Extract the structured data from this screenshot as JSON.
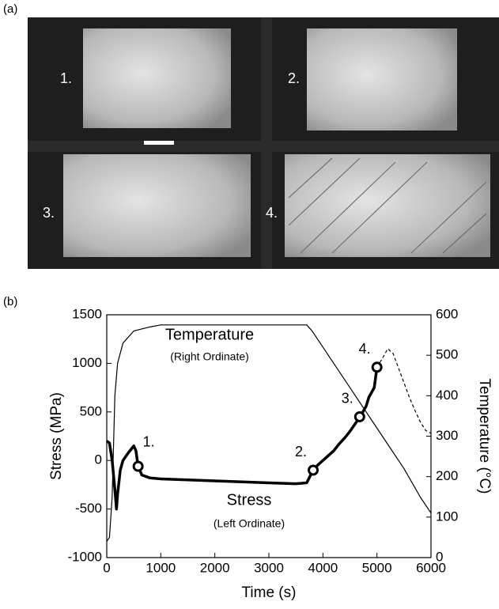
{
  "panel_a": {
    "label": "(a)",
    "frames": [
      "1.",
      "2.",
      "3.",
      "4."
    ]
  },
  "chart_data": {
    "type": "line",
    "label": "(b)",
    "xlabel": "Time (s)",
    "ylabel": "Stress (MPa)",
    "y2label": "Temperature (°C)",
    "xlim": [
      0,
      6000
    ],
    "xticks": [
      0,
      1000,
      2000,
      3000,
      4000,
      5000,
      6000
    ],
    "ylim": [
      -1000,
      1500
    ],
    "yticks": [
      -1000,
      -500,
      0,
      500,
      1000,
      1500
    ],
    "y2lim": [
      0,
      600
    ],
    "y2ticks": [
      0,
      100,
      200,
      300,
      400,
      500,
      600
    ],
    "series": [
      {
        "name": "Stress",
        "note": "(Left Ordinate)",
        "color": "#000000",
        "width": 3.5,
        "x": [
          0,
          50,
          100,
          150,
          180,
          200,
          250,
          300,
          400,
          500,
          540,
          580,
          650,
          800,
          1000,
          1500,
          2000,
          2500,
          3000,
          3500,
          3700,
          3800,
          3900,
          4000,
          4100,
          4200,
          4300,
          4400,
          4500,
          4600,
          4700,
          4800,
          4850,
          4900,
          4950,
          5000
        ],
        "values": [
          200,
          180,
          0,
          -300,
          -500,
          -350,
          -100,
          0,
          80,
          150,
          100,
          -60,
          -150,
          -180,
          -190,
          -200,
          -210,
          -220,
          -230,
          -240,
          -230,
          -120,
          -50,
          0,
          50,
          100,
          170,
          230,
          300,
          380,
          460,
          560,
          650,
          700,
          750,
          960
        ]
      },
      {
        "color": "#000000",
        "width": 1.2,
        "dashed": true,
        "x": [
          5000,
          5100,
          5200,
          5300,
          5400,
          5500,
          5600,
          5700,
          5800,
          5900,
          6000
        ],
        "values": [
          960,
          1050,
          1150,
          1100,
          950,
          800,
          650,
          520,
          400,
          310,
          280
        ]
      },
      {
        "name": "Temperature",
        "note": "(Right Ordinate)",
        "color": "#000000",
        "width": 1.2,
        "axis": "y2",
        "x": [
          0,
          50,
          100,
          150,
          200,
          300,
          500,
          800,
          1000,
          2000,
          3000,
          3700,
          3800,
          4000,
          4200,
          4500,
          4800,
          5000,
          5200,
          5500,
          5800,
          6000
        ],
        "values": [
          40,
          50,
          150,
          400,
          480,
          530,
          560,
          570,
          575,
          575,
          575,
          575,
          560,
          520,
          480,
          420,
          360,
          320,
          280,
          220,
          150,
          110
        ]
      }
    ],
    "points": {
      "labels": [
        "1.",
        "2.",
        "3.",
        "4."
      ],
      "x": [
        580,
        3820,
        4680,
        5000
      ],
      "y": [
        -60,
        -100,
        450,
        960
      ]
    }
  }
}
